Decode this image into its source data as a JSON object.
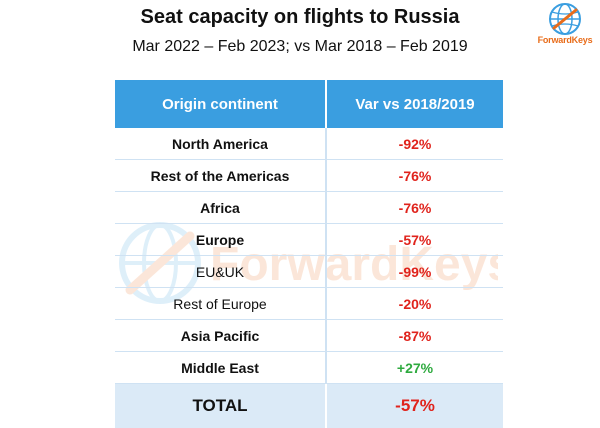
{
  "title": "Seat capacity on flights to Russia",
  "subtitle": "Mar 2022 – Feb 2023; vs Mar 2018 – Feb 2019",
  "logo": {
    "text": "ForwardKeys",
    "icon": "globe-icon"
  },
  "watermark": {
    "text": "ForwardKeys"
  },
  "colors": {
    "header": "#3a9ee0",
    "negative": "#e0231c",
    "positive": "#2eaa3f",
    "total_bg": "#dbeaf7",
    "brand": "#e86c1a"
  },
  "chart_data": {
    "type": "table",
    "columns": [
      "Origin continent",
      "Var vs 2018/2019"
    ],
    "rows": [
      {
        "origin": "North America",
        "var": "-92%",
        "value": -92,
        "bold": true
      },
      {
        "origin": "Rest of the Americas",
        "var": "-76%",
        "value": -76,
        "bold": true
      },
      {
        "origin": "Africa",
        "var": "-76%",
        "value": -76,
        "bold": true
      },
      {
        "origin": "Europe",
        "var": "-57%",
        "value": -57,
        "bold": true
      },
      {
        "origin": "EU&UK",
        "var": "-99%",
        "value": -99,
        "bold": false
      },
      {
        "origin": "Rest of Europe",
        "var": "-20%",
        "value": -20,
        "bold": false
      },
      {
        "origin": "Asia Pacific",
        "var": "-87%",
        "value": -87,
        "bold": true
      },
      {
        "origin": "Middle East",
        "var": "+27%",
        "value": 27,
        "bold": true
      }
    ],
    "total": {
      "origin": "TOTAL",
      "var": "-57%",
      "value": -57
    }
  }
}
